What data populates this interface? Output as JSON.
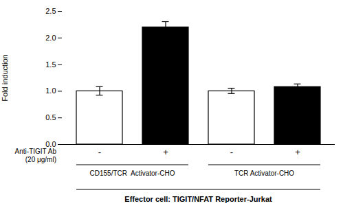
{
  "chart_data": {
    "type": "bar",
    "ylabel": "Fold induction",
    "categories": [
      "-",
      "+",
      "-",
      "+"
    ],
    "values": [
      1.0,
      2.2,
      1.0,
      1.08
    ],
    "errors": [
      0.08,
      0.1,
      0.05,
      0.05
    ],
    "colors": [
      "white",
      "black",
      "white",
      "black"
    ],
    "groups": [
      "CD155/TCR  Activator-CHO",
      "CD155/TCR  Activator-CHO",
      "TCR Activator-CHO",
      "TCR Activator-CHO"
    ],
    "row_label": "Anti-TIGIT Ab\n(20 μg/ml)",
    "caption": "Effector cell: TIGIT/NFAT Reporter-Jurkat",
    "ylim": [
      0,
      2.5
    ],
    "yticks": [
      0,
      0.5,
      1.0,
      1.5,
      2.0,
      2.5
    ],
    "grid": false
  }
}
